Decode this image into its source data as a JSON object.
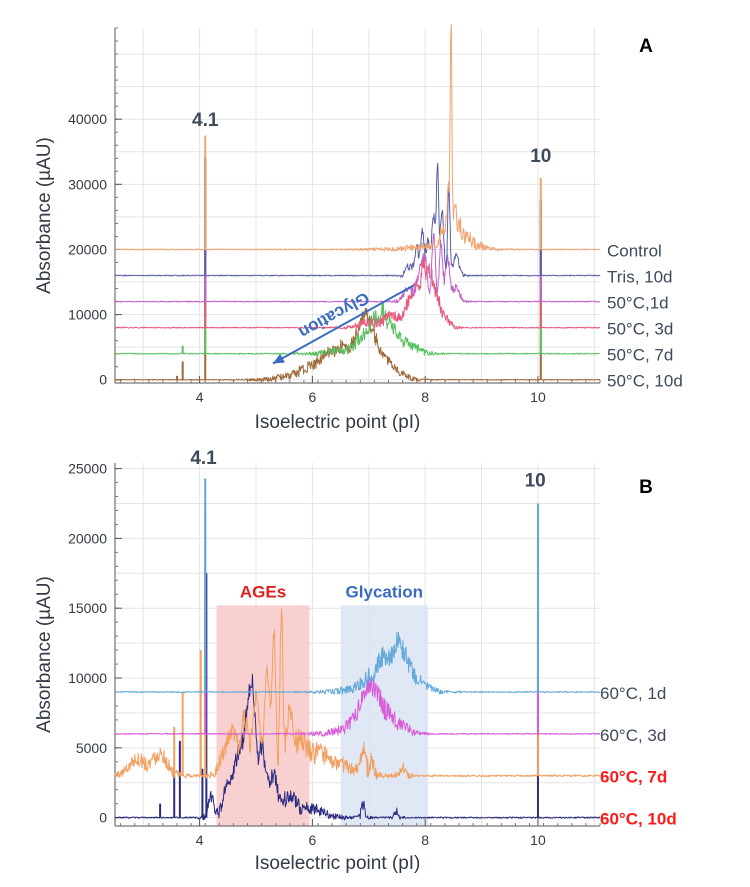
{
  "chart_data": [
    {
      "panel_label": "A",
      "type": "line",
      "xlabel": "Isoelectric point (pI)",
      "ylabel": "Absorbance (µAU)",
      "xlim": [
        2.5,
        11.1
      ],
      "ylim": [
        -500,
        54000
      ],
      "x_ticks": [
        4,
        6,
        8,
        10
      ],
      "y_ticks": [
        0,
        10000,
        20000,
        30000,
        40000
      ],
      "peak_labels": [
        {
          "text": "4.1",
          "x": 4.1,
          "y": 38000
        },
        {
          "text": "10",
          "x": 10.05,
          "y": 32500
        }
      ],
      "arrow_annotation": {
        "text": "Glycation",
        "from": [
          7.8,
          14500
        ],
        "to": [
          5.3,
          2500
        ],
        "color": "#3a6cc0"
      },
      "series": [
        {
          "name": "Control",
          "color": "#f2a36f",
          "baseline": 20000,
          "markers": [
            {
              "x": 4.1,
              "h": 17500
            },
            {
              "x": 10.05,
              "h": 11000
            }
          ],
          "noise_amp": 150,
          "peaks": [
            [
              8.0,
              400,
              0.3
            ],
            [
              8.32,
              3000,
              0.06
            ],
            [
              8.42,
              8000,
              0.03
            ],
            [
              8.46,
              32000,
              0.014
            ],
            [
              8.52,
              6000,
              0.025
            ],
            [
              8.6,
              4000,
              0.05
            ],
            [
              8.75,
              2000,
              0.05
            ],
            [
              8.9,
              800,
              0.1
            ]
          ]
        },
        {
          "name": "Tris, 10d",
          "color": "#5a5fa6",
          "baseline": 16000,
          "markers": [
            {
              "x": 4.1,
              "h": 18000
            },
            {
              "x": 10.05,
              "h": 11500
            }
          ],
          "noise_amp": 150,
          "peaks": [
            [
              7.7,
              1500,
              0.05
            ],
            [
              7.85,
              4000,
              0.04
            ],
            [
              7.95,
              6000,
              0.03
            ],
            [
              8.05,
              5000,
              0.04
            ],
            [
              8.15,
              9000,
              0.03
            ],
            [
              8.22,
              17000,
              0.02
            ],
            [
              8.3,
              10000,
              0.03
            ],
            [
              8.42,
              14000,
              0.02
            ],
            [
              8.55,
              3000,
              0.05
            ]
          ]
        },
        {
          "name": "50°C,1d",
          "color": "#c060c8",
          "baseline": 12000,
          "markers": [
            {
              "x": 4.1,
              "h": 22000
            },
            {
              "x": 10.05,
              "h": 15500
            }
          ],
          "noise_amp": 150,
          "peaks": [
            [
              7.7,
              2000,
              0.08
            ],
            [
              7.9,
              4500,
              0.05
            ],
            [
              8.0,
              6500,
              0.04
            ],
            [
              8.15,
              10500,
              0.03
            ],
            [
              8.28,
              9000,
              0.03
            ],
            [
              8.4,
              6500,
              0.04
            ],
            [
              8.55,
              2000,
              0.06
            ]
          ]
        },
        {
          "name": "50°C, 3d",
          "color": "#e8587a",
          "baseline": 8000,
          "markers": [
            {
              "x": 4.1,
              "h": 26000
            },
            {
              "x": 10.05,
              "h": 19500
            }
          ],
          "noise_amp": 150,
          "peaks": [
            [
              7.0,
              800,
              0.15
            ],
            [
              7.4,
              1800,
              0.12
            ],
            [
              7.7,
              3500,
              0.08
            ],
            [
              7.85,
              6000,
              0.06
            ],
            [
              7.97,
              9000,
              0.04
            ],
            [
              8.08,
              8000,
              0.05
            ],
            [
              8.2,
              4500,
              0.06
            ],
            [
              8.35,
              1500,
              0.08
            ]
          ]
        },
        {
          "name": "50°C, 7d",
          "color": "#58c060",
          "baseline": 4000,
          "markers": [
            {
              "x": 3.7,
              "h": 1200
            },
            {
              "x": 4.1,
              "h": 30000
            },
            {
              "x": 10.05,
              "h": 23500
            }
          ],
          "noise_amp": 150,
          "peaks": [
            [
              6.5,
              600,
              0.2
            ],
            [
              6.9,
              2500,
              0.12
            ],
            [
              7.1,
              4500,
              0.08
            ],
            [
              7.25,
              5200,
              0.06
            ],
            [
              7.4,
              4000,
              0.08
            ],
            [
              7.6,
              1800,
              0.1
            ],
            [
              7.85,
              700,
              0.1
            ]
          ]
        },
        {
          "name": "50°C, 10d",
          "color": "#a06a38",
          "baseline": 0,
          "markers": [
            {
              "x": 3.6,
              "h": 600
            },
            {
              "x": 3.7,
              "h": 2800
            },
            {
              "x": 4.1,
              "h": 34000
            },
            {
              "x": 10.05,
              "h": 27500
            }
          ],
          "noise_amp": 120,
          "peaks": [
            [
              5.6,
              500,
              0.2
            ],
            [
              6.0,
              1800,
              0.2
            ],
            [
              6.3,
              3000,
              0.15
            ],
            [
              6.55,
              4000,
              0.12
            ],
            [
              6.8,
              5800,
              0.1
            ],
            [
              6.95,
              6500,
              0.08
            ],
            [
              7.1,
              5000,
              0.1
            ],
            [
              7.3,
              2500,
              0.12
            ],
            [
              7.55,
              800,
              0.12
            ]
          ]
        }
      ]
    },
    {
      "panel_label": "B",
      "type": "line",
      "xlabel": "Isoelectric point (pI)",
      "ylabel": "Absorbance (µAU)",
      "xlim": [
        2.5,
        11.1
      ],
      "ylim": [
        -600,
        25400
      ],
      "x_ticks": [
        4,
        6,
        8,
        10
      ],
      "y_ticks": [
        0,
        5000,
        10000,
        15000,
        20000,
        25000
      ],
      "peak_labels": [
        {
          "text": "4.1",
          "x": 4.07,
          "y": 24900
        },
        {
          "text": "10",
          "x": 9.95,
          "y": 23300
        }
      ],
      "regions": [
        {
          "text": "AGEs",
          "x0": 4.3,
          "x1": 5.95,
          "y_top": 15200,
          "fill": "#f8c8c8",
          "text_color": "#e02020"
        },
        {
          "text": "Glycation",
          "x0": 6.5,
          "x1": 8.05,
          "y_top": 15200,
          "fill": "#dbe3f3",
          "text_color": "#3a6cc0"
        }
      ],
      "series": [
        {
          "name": "60°C, 1d",
          "color": "#62a8d8",
          "label_color": "#3d4a5c",
          "label_bold": false,
          "baseline": 9000,
          "markers": [
            {
              "x": 4.1,
              "h": 15300
            },
            {
              "x": 10.0,
              "h": 13500
            }
          ],
          "noise_amp": 80,
          "peaks": [
            [
              6.8,
              300,
              0.2
            ],
            [
              7.1,
              1200,
              0.15
            ],
            [
              7.3,
              2000,
              0.1
            ],
            [
              7.5,
              2600,
              0.08
            ],
            [
              7.65,
              2000,
              0.1
            ],
            [
              7.9,
              700,
              0.15
            ]
          ]
        },
        {
          "name": "60°C, 3d",
          "color": "#d85ad8",
          "label_color": "#3d4a5c",
          "label_bold": false,
          "baseline": 6000,
          "markers": [
            {
              "x": 4.1,
              "h": 16000
            },
            {
              "x": 10.0,
              "h": 14000
            }
          ],
          "noise_amp": 80,
          "peaks": [
            [
              6.6,
              300,
              0.2
            ],
            [
              6.85,
              1500,
              0.12
            ],
            [
              7.0,
              2500,
              0.08
            ],
            [
              7.15,
              2300,
              0.08
            ],
            [
              7.35,
              1500,
              0.1
            ],
            [
              7.6,
              500,
              0.12
            ]
          ]
        },
        {
          "name": "60°C, 7d",
          "color": "#f2a060",
          "label_color": "#ff1a1a",
          "label_bold": true,
          "baseline": 3000,
          "markers": [
            {
              "x": 3.55,
              "h": 3500
            },
            {
              "x": 3.7,
              "h": 6000
            },
            {
              "x": 4.02,
              "h": 9000
            },
            {
              "x": 4.1,
              "h": 13000
            },
            {
              "x": 10.0,
              "h": 7000
            }
          ],
          "noise_amp": 120,
          "peaks": [
            [
              2.9,
              1200,
              0.15
            ],
            [
              3.3,
              1600,
              0.12
            ],
            [
              4.45,
              1500,
              0.1
            ],
            [
              4.6,
              2500,
              0.08
            ],
            [
              4.8,
              4000,
              0.06
            ],
            [
              5.0,
              5500,
              0.06
            ],
            [
              5.2,
              7500,
              0.05
            ],
            [
              5.32,
              10000,
              0.03
            ],
            [
              5.45,
              11500,
              0.025
            ],
            [
              5.6,
              4500,
              0.06
            ],
            [
              5.8,
              2500,
              0.1
            ],
            [
              6.1,
              1500,
              0.15
            ],
            [
              6.5,
              800,
              0.2
            ],
            [
              6.9,
              2000,
              0.04
            ],
            [
              7.05,
              1200,
              0.04
            ],
            [
              7.6,
              600,
              0.05
            ]
          ]
        },
        {
          "name": "60°C, 10d",
          "color": "#2c2c80",
          "label_color": "#ff1a1a",
          "label_bold": true,
          "baseline": 0,
          "markers": [
            {
              "x": 3.3,
              "h": 1000
            },
            {
              "x": 3.55,
              "h": 3000
            },
            {
              "x": 3.65,
              "h": 5500
            },
            {
              "x": 4.05,
              "h": 3500
            },
            {
              "x": 4.12,
              "h": 17500
            },
            {
              "x": 10.0,
              "h": 13700
            }
          ],
          "noise_amp": 100,
          "peaks": [
            [
              4.2,
              1500,
              0.05
            ],
            [
              4.5,
              2500,
              0.08
            ],
            [
              4.7,
              4500,
              0.08
            ],
            [
              4.85,
              6500,
              0.06
            ],
            [
              4.95,
              7500,
              0.05
            ],
            [
              5.1,
              5000,
              0.06
            ],
            [
              5.3,
              3000,
              0.08
            ],
            [
              5.6,
              1500,
              0.12
            ],
            [
              6.0,
              600,
              0.2
            ],
            [
              6.9,
              900,
              0.03
            ],
            [
              7.5,
              400,
              0.03
            ]
          ]
        }
      ]
    }
  ]
}
